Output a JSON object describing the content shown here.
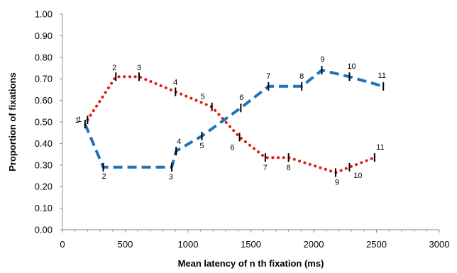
{
  "chart_data": {
    "type": "line",
    "title": "",
    "xlabel": "Mean latency of n th fixation (ms)",
    "ylabel": "Proportion of fixations",
    "xlim": [
      0,
      3000
    ],
    "ylim": [
      0,
      1.0
    ],
    "x_ticks": [
      "0",
      "500",
      "1000",
      "1500",
      "2000",
      "2500",
      "3000"
    ],
    "y_ticks": [
      "0.00",
      "0.10",
      "0.20",
      "0.30",
      "0.40",
      "0.50",
      "0.60",
      "0.70",
      "0.80",
      "0.90",
      "1.00"
    ],
    "grid": false,
    "legend": "none",
    "series": [
      {
        "color": "#e8160c",
        "style": "dotted",
        "points": [
          {
            "label": "1",
            "x": 200,
            "y": 0.51
          },
          {
            "label": "2",
            "x": 425,
            "y": 0.71
          },
          {
            "label": "3",
            "x": 610,
            "y": 0.71
          },
          {
            "label": "4",
            "x": 900,
            "y": 0.64
          },
          {
            "label": "5",
            "x": 1190,
            "y": 0.57
          },
          {
            "label": "6",
            "x": 1410,
            "y": 0.43
          },
          {
            "label": "7",
            "x": 1615,
            "y": 0.335
          },
          {
            "label": "8",
            "x": 1800,
            "y": 0.335
          },
          {
            "label": "9",
            "x": 2175,
            "y": 0.265
          },
          {
            "label": "10",
            "x": 2285,
            "y": 0.29
          },
          {
            "label": "11",
            "x": 2485,
            "y": 0.335
          }
        ]
      },
      {
        "color": "#1f72bd",
        "style": "dashed",
        "points": [
          {
            "label": "1",
            "x": 180,
            "y": 0.49
          },
          {
            "label": "2",
            "x": 325,
            "y": 0.29
          },
          {
            "label": "3",
            "x": 870,
            "y": 0.29
          },
          {
            "label": "4",
            "x": 905,
            "y": 0.365
          },
          {
            "label": "5",
            "x": 1110,
            "y": 0.435
          },
          {
            "label": "6",
            "x": 1420,
            "y": 0.565
          },
          {
            "label": "7",
            "x": 1640,
            "y": 0.665
          },
          {
            "label": "8",
            "x": 1905,
            "y": 0.665
          },
          {
            "label": "9",
            "x": 2065,
            "y": 0.74
          },
          {
            "label": "10",
            "x": 2285,
            "y": 0.71
          },
          {
            "label": "11",
            "x": 2555,
            "y": 0.665
          }
        ]
      }
    ]
  }
}
